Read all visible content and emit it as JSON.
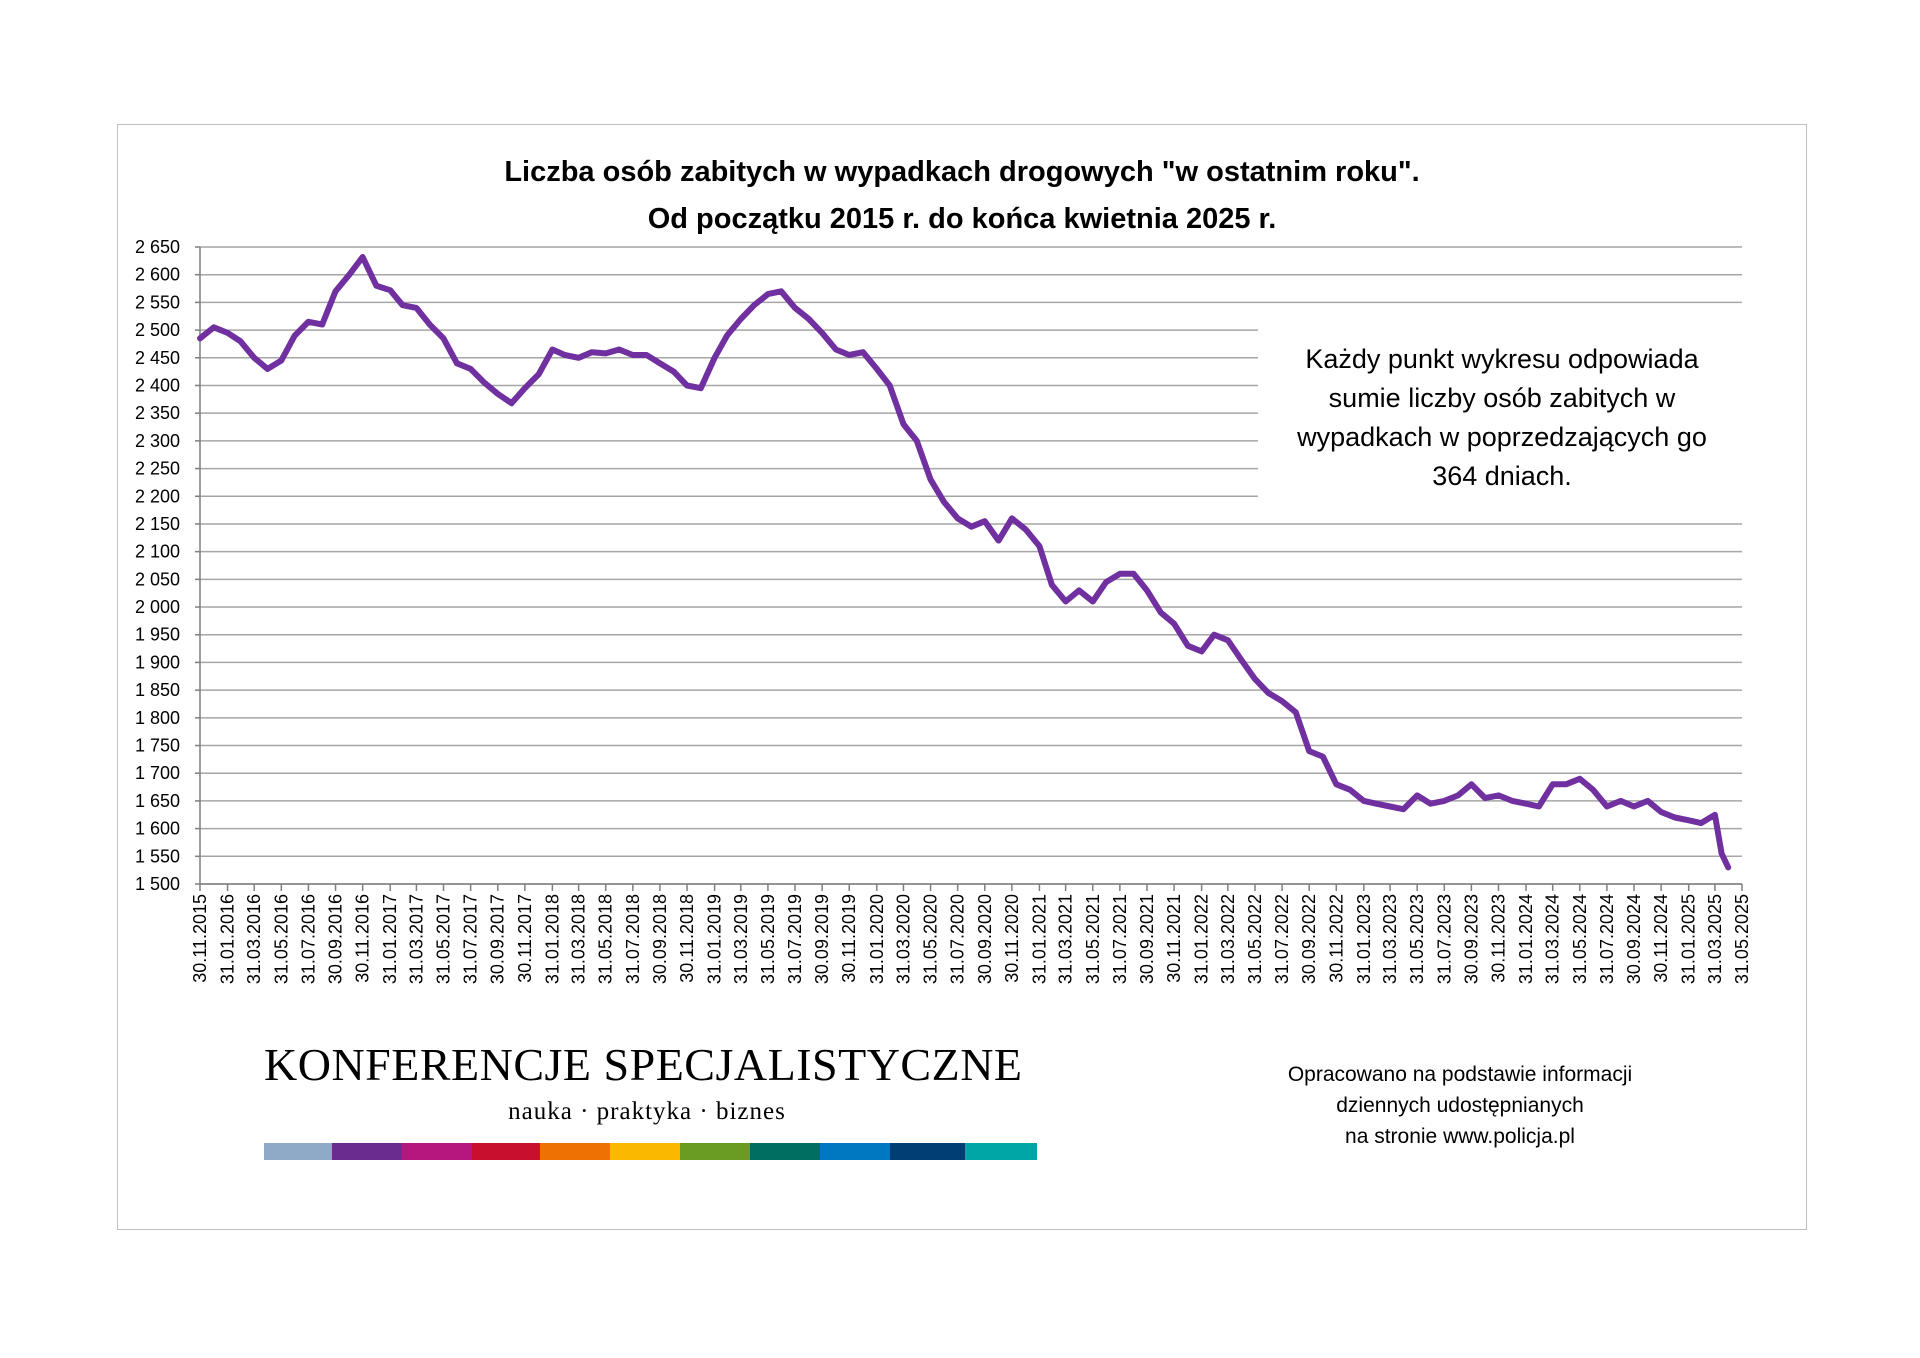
{
  "chart_data": {
    "type": "line",
    "title": "Liczba osób zabitych w wypadkach drogowych \"w ostatnim roku\".",
    "subtitle": "Od początku 2015 r. do końca kwietnia 2025 r.",
    "ylim": [
      1500,
      2650
    ],
    "yticks": [
      1500,
      1550,
      1600,
      1650,
      1700,
      1750,
      1800,
      1850,
      1900,
      1950,
      2000,
      2050,
      2100,
      2150,
      2200,
      2250,
      2300,
      2350,
      2400,
      2450,
      2500,
      2550,
      2600,
      2650
    ],
    "ytick_labels": [
      "1 500",
      "1 550",
      "1 600",
      "1 650",
      "1 700",
      "1 750",
      "1 800",
      "1 850",
      "1 900",
      "1 950",
      "2 000",
      "2 050",
      "2 100",
      "2 150",
      "2 200",
      "2 250",
      "2 300",
      "2 350",
      "2 400",
      "2 450",
      "2 500",
      "2 550",
      "2 600",
      "2 650"
    ],
    "xtick_labels": [
      "30.11.2015",
      "31.01.2016",
      "31.03.2016",
      "31.05.2016",
      "31.07.2016",
      "30.09.2016",
      "30.11.2016",
      "31.01.2017",
      "31.03.2017",
      "31.05.2017",
      "31.07.2017",
      "30.09.2017",
      "30.11.2017",
      "31.01.2018",
      "31.03.2018",
      "31.05.2018",
      "31.07.2018",
      "30.09.2018",
      "30.11.2018",
      "31.01.2019",
      "31.03.2019",
      "31.05.2019",
      "31.07.2019",
      "30.09.2019",
      "30.11.2019",
      "31.01.2020",
      "31.03.2020",
      "31.05.2020",
      "31.07.2020",
      "30.09.2020",
      "30.11.2020",
      "31.01.2021",
      "31.03.2021",
      "31.05.2021",
      "31.07.2021",
      "30.09.2021",
      "30.11.2021",
      "31.01.2022",
      "31.03.2022",
      "31.05.2022",
      "31.07.2022",
      "30.09.2022",
      "30.11.2022",
      "31.01.2023",
      "31.03.2023",
      "31.05.2023",
      "31.07.2023",
      "30.09.2023",
      "30.11.2023",
      "31.01.2024",
      "31.03.2024",
      "31.05.2024",
      "31.07.2024",
      "30.09.2024",
      "30.11.2024",
      "31.01.2025",
      "31.03.2025",
      "31.05.2025"
    ],
    "grid": true,
    "legend": "none",
    "series": [
      {
        "color": "#7030a0",
        "x": [
          "2015-11-30",
          "2015-12-31",
          "2016-01-31",
          "2016-02-29",
          "2016-03-31",
          "2016-04-30",
          "2016-05-31",
          "2016-06-30",
          "2016-07-31",
          "2016-08-31",
          "2016-09-30",
          "2016-10-31",
          "2016-11-30",
          "2016-12-31",
          "2017-01-31",
          "2017-02-28",
          "2017-03-31",
          "2017-04-30",
          "2017-05-31",
          "2017-06-30",
          "2017-07-31",
          "2017-08-31",
          "2017-09-30",
          "2017-10-31",
          "2017-11-30",
          "2017-12-31",
          "2018-01-31",
          "2018-02-28",
          "2018-03-31",
          "2018-04-30",
          "2018-05-31",
          "2018-06-30",
          "2018-07-31",
          "2018-08-31",
          "2018-09-30",
          "2018-10-31",
          "2018-11-30",
          "2018-12-31",
          "2019-01-31",
          "2019-02-28",
          "2019-03-31",
          "2019-04-30",
          "2019-05-31",
          "2019-06-30",
          "2019-07-31",
          "2019-08-31",
          "2019-09-30",
          "2019-10-31",
          "2019-11-30",
          "2019-12-31",
          "2020-01-31",
          "2020-02-29",
          "2020-03-31",
          "2020-04-30",
          "2020-05-31",
          "2020-06-30",
          "2020-07-31",
          "2020-08-31",
          "2020-09-30",
          "2020-10-31",
          "2020-11-30",
          "2020-12-31",
          "2021-01-31",
          "2021-02-28",
          "2021-03-31",
          "2021-04-30",
          "2021-05-31",
          "2021-06-30",
          "2021-07-31",
          "2021-08-31",
          "2021-09-30",
          "2021-10-31",
          "2021-11-30",
          "2021-12-31",
          "2022-01-31",
          "2022-02-28",
          "2022-03-31",
          "2022-04-30",
          "2022-05-31",
          "2022-06-30",
          "2022-07-31",
          "2022-08-31",
          "2022-09-30",
          "2022-10-31",
          "2022-11-30",
          "2022-12-31",
          "2023-01-31",
          "2023-02-28",
          "2023-03-31",
          "2023-04-30",
          "2023-05-31",
          "2023-06-30",
          "2023-07-31",
          "2023-08-31",
          "2023-09-30",
          "2023-10-31",
          "2023-11-30",
          "2023-12-31",
          "2024-01-31",
          "2024-02-29",
          "2024-03-31",
          "2024-04-30",
          "2024-05-31",
          "2024-06-30",
          "2024-07-31",
          "2024-08-31",
          "2024-09-30",
          "2024-10-31",
          "2024-11-30",
          "2024-12-31",
          "2025-01-31",
          "2025-02-28",
          "2025-03-31",
          "2025-04-15",
          "2025-04-30"
        ],
        "values": [
          2485,
          2505,
          2495,
          2480,
          2450,
          2430,
          2445,
          2490,
          2515,
          2510,
          2570,
          2600,
          2632,
          2580,
          2572,
          2545,
          2540,
          2510,
          2485,
          2440,
          2430,
          2405,
          2385,
          2368,
          2395,
          2420,
          2465,
          2455,
          2450,
          2460,
          2458,
          2465,
          2455,
          2455,
          2440,
          2425,
          2400,
          2395,
          2450,
          2490,
          2520,
          2545,
          2565,
          2570,
          2540,
          2520,
          2495,
          2465,
          2455,
          2460,
          2430,
          2400,
          2330,
          2300,
          2230,
          2190,
          2160,
          2145,
          2155,
          2120,
          2160,
          2140,
          2110,
          2040,
          2010,
          2030,
          2010,
          2045,
          2060,
          2060,
          2030,
          1990,
          1970,
          1930,
          1920,
          1950,
          1940,
          1905,
          1870,
          1845,
          1830,
          1810,
          1740,
          1730,
          1680,
          1670,
          1650,
          1645,
          1640,
          1635,
          1660,
          1645,
          1650,
          1660,
          1680,
          1655,
          1660,
          1650,
          1645,
          1640,
          1680,
          1680,
          1690,
          1670,
          1640,
          1650,
          1640,
          1650,
          1630,
          1620,
          1615,
          1610,
          1625,
          1555,
          1530
        ]
      }
    ]
  },
  "note": [
    "Każdy punkt wykresu odpowiada",
    "sumie liczby osób zabitych w",
    "wypadkach w poprzedzających go",
    "364 dniach."
  ],
  "branding": {
    "name": "KONFERENCJE SPECJALISTYCZNE",
    "tagline": "nauka · praktyka · biznes",
    "colors": [
      "#8eaac7",
      "#6b2c8f",
      "#b5177e",
      "#c8102e",
      "#ee7203",
      "#fbb800",
      "#6a9c23",
      "#006f62",
      "#0078c1",
      "#003e74",
      "#00a6a6"
    ]
  },
  "source": [
    "Opracowano na podstawie informacji",
    "dziennych udostępnianych",
    "na stronie www.policja.pl"
  ]
}
